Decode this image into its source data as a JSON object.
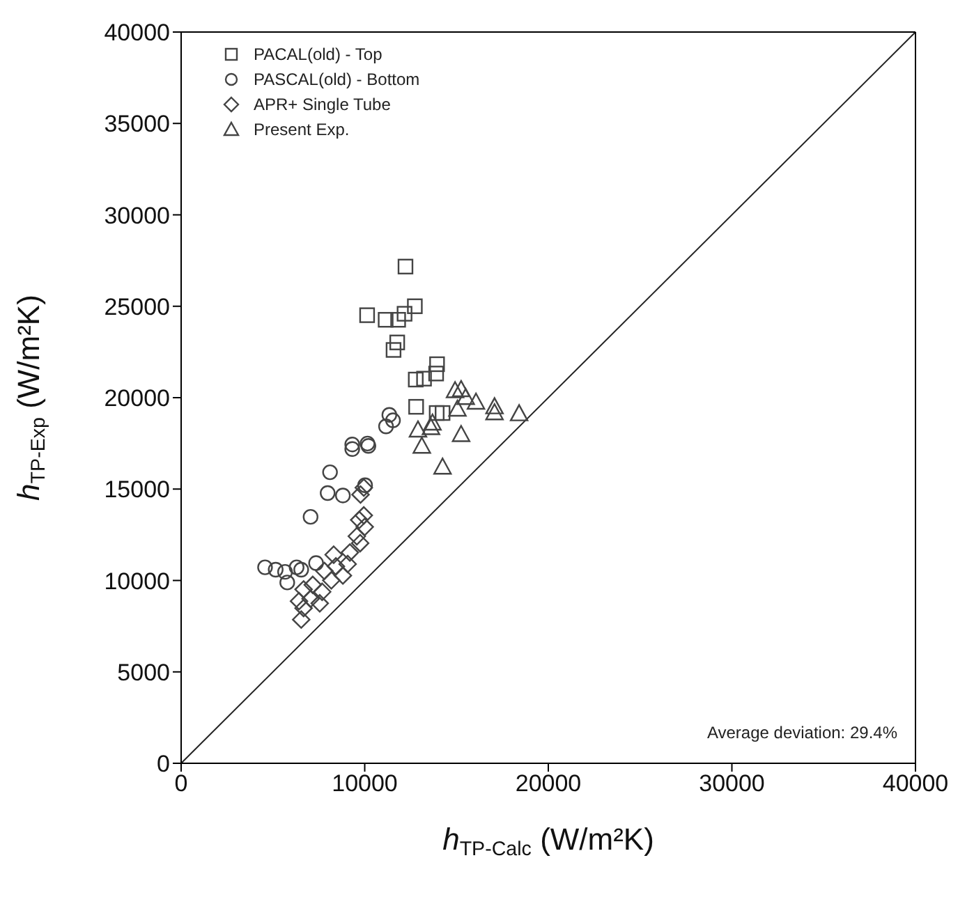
{
  "chart_data": {
    "type": "scatter",
    "xlabel": "h$_{TP-Calc}$ (W/m²K)",
    "ylabel": "h$_{TP-Exp}$ (W/m²K)",
    "xlim": [
      0,
      40000
    ],
    "ylim": [
      0,
      40000
    ],
    "xticks": [
      0,
      10000,
      20000,
      30000,
      40000
    ],
    "yticks": [
      0,
      5000,
      10000,
      15000,
      20000,
      25000,
      30000,
      35000,
      40000
    ],
    "legend": "top left",
    "annotations": [
      "Average deviation: 29.4%"
    ],
    "series": [
      {
        "name": "PACAL(old) - Top",
        "color": "#444444",
        "marker": "square",
        "x": [
          12220,
          10130,
          11140,
          11820,
          12170,
          12730,
          11770,
          11570,
          13940,
          13890,
          13230,
          12780,
          12800,
          13920,
          14240
        ],
        "values": [
          27170,
          24510,
          24260,
          24260,
          24590,
          25000,
          23020,
          22610,
          21830,
          21320,
          21040,
          20990,
          19500,
          19160,
          19160
        ]
      },
      {
        "name": "PASCAL(old) - Bottom",
        "color": "#444444",
        "marker": "circle",
        "x": [
          11340,
          11540,
          11160,
          10150,
          9320,
          9320,
          10200,
          8110,
          7980,
          8810,
          7050,
          4570,
          5150,
          5660,
          6290,
          6540,
          7350,
          5780,
          10020
        ],
        "values": [
          19060,
          18760,
          18430,
          17490,
          17440,
          17190,
          17360,
          15920,
          14780,
          14650,
          13480,
          10720,
          10590,
          10470,
          10720,
          10590,
          10950,
          9890,
          15210
        ]
      },
      {
        "name": "APR+ Single Tube",
        "color": "#444444",
        "marker": "diamond",
        "x": [
          9770,
          9950,
          9950,
          9700,
          10000,
          9570,
          9750,
          9190,
          8310,
          9070,
          8430,
          7800,
          8810,
          8180,
          7170,
          7680,
          6670,
          7050,
          6420,
          7550,
          6670,
          6540
        ],
        "values": [
          14700,
          15080,
          13560,
          13310,
          12930,
          12420,
          12040,
          11530,
          11410,
          10900,
          10770,
          10520,
          10270,
          10010,
          9760,
          9380,
          9510,
          9000,
          8870,
          8750,
          8490,
          7860
        ]
      },
      {
        "name": "Present Exp.",
        "color": "#444444",
        "marker": "triangle",
        "x": [
          14920,
          15250,
          15500,
          16060,
          17070,
          17070,
          18410,
          15050,
          12900,
          13690,
          13610,
          15250,
          13110,
          14240
        ],
        "values": [
          20400,
          20460,
          20030,
          19770,
          19520,
          19190,
          19140,
          19390,
          18250,
          18630,
          18380,
          18000,
          17360,
          16220
        ]
      },
      {
        "type": "line",
        "color": "#222222",
        "marker": "none",
        "line_style": "solid",
        "x": [
          0,
          40000
        ],
        "values": [
          0,
          40000
        ]
      }
    ]
  }
}
